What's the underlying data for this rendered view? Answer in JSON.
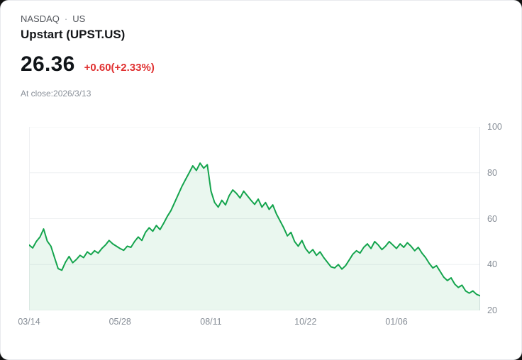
{
  "header": {
    "exchange": "NASDAQ",
    "separator": "·",
    "region": "US",
    "name": "Upstart (UPST.US)"
  },
  "quote": {
    "price": "26.36",
    "change": "+0.60(+2.33%)",
    "change_color": "#e03131",
    "close_note": "At close:2026/3/13"
  },
  "chart_data": {
    "type": "area",
    "title": "",
    "xlabel": "",
    "ylabel": "",
    "ylim": [
      20,
      100
    ],
    "y_ticks": [
      20,
      40,
      60,
      80,
      100
    ],
    "x_tick_labels": [
      "03/14",
      "05/28",
      "08/11",
      "10/22",
      "01/06"
    ],
    "x_tick_indices": [
      0,
      25,
      50,
      76,
      101
    ],
    "line_color": "#14a44d",
    "fill_color": "rgba(20,164,77,0.09)",
    "grid": true,
    "legend": "none",
    "values": [
      48.5,
      47.2,
      50.1,
      52.0,
      55.5,
      50.2,
      48.0,
      43.0,
      38.2,
      37.5,
      41.0,
      43.5,
      40.8,
      42.2,
      44.0,
      43.0,
      45.5,
      44.3,
      46.0,
      45.0,
      47.0,
      48.5,
      50.5,
      49.0,
      48.0,
      47.0,
      46.2,
      48.0,
      47.5,
      50.0,
      52.0,
      50.5,
      54.0,
      56.0,
      54.5,
      57.0,
      55.2,
      58.0,
      61.0,
      63.5,
      67.0,
      70.5,
      74.0,
      77.0,
      80.0,
      83.0,
      81.0,
      84.2,
      82.0,
      83.5,
      72.0,
      67.0,
      65.0,
      68.0,
      66.0,
      70.0,
      72.5,
      71.0,
      69.0,
      72.0,
      70.0,
      68.0,
      66.2,
      68.5,
      65.0,
      67.0,
      64.0,
      66.0,
      62.0,
      59.0,
      56.0,
      52.5,
      54.0,
      50.0,
      48.0,
      50.5,
      47.0,
      45.0,
      46.5,
      44.0,
      45.5,
      43.0,
      41.0,
      39.0,
      38.5,
      40.0,
      38.0,
      39.5,
      42.0,
      44.5,
      46.0,
      45.0,
      47.5,
      49.0,
      47.0,
      50.0,
      48.5,
      46.5,
      48.0,
      50.0,
      48.5,
      47.0,
      49.0,
      47.5,
      49.5,
      48.0,
      46.0,
      47.5,
      45.0,
      43.0,
      40.5,
      38.5,
      39.5,
      37.0,
      34.5,
      33.0,
      34.2,
      31.5,
      30.0,
      31.0,
      28.5,
      27.5,
      28.5,
      27.0,
      26.36
    ]
  }
}
